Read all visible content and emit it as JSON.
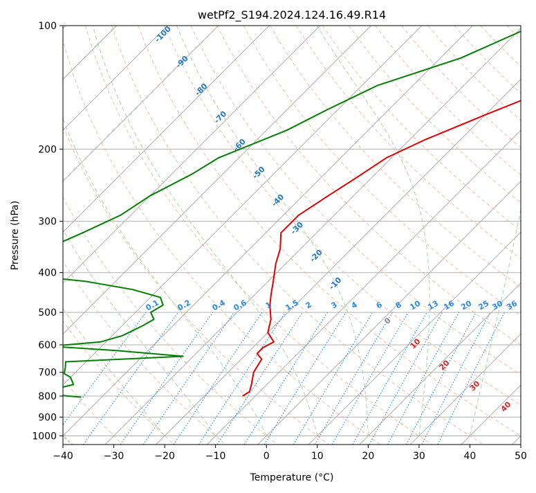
{
  "chart_data": {
    "type": "skew-t",
    "title": "wetPf2_S194.2024.124.16.49.R14",
    "xlabel": "Temperature (°C)",
    "ylabel": "Pressure (hPa)",
    "xlim": [
      -40,
      50
    ],
    "ylim": [
      1050,
      100
    ],
    "y_scale": "log",
    "grid": true,
    "x_ticks": [
      -40,
      -30,
      -20,
      -10,
      0,
      10,
      20,
      30,
      40,
      50
    ],
    "x_tick_labels": [
      "−40",
      "−30",
      "−20",
      "−10",
      "0",
      "10",
      "20",
      "30",
      "40",
      "50"
    ],
    "y_ticks": [
      100,
      200,
      300,
      400,
      500,
      600,
      700,
      800,
      900,
      1000
    ],
    "y_tick_labels": [
      "100",
      "200",
      "300",
      "400",
      "500",
      "600",
      "700",
      "800",
      "900",
      "1000"
    ],
    "colors": {
      "temperature": "#e00000",
      "dewpoint": "#008000",
      "isotherm": "#aaaaaa",
      "dry_adiabat": "#f4a582",
      "moist_adiabat": "#9fd49f",
      "mixing_ratio": "#1e88e5",
      "label_blue": "#1f78c8",
      "label_red": "#d62728"
    },
    "series": [
      {
        "name": "",
        "color": "#e00000",
        "points": [
          [
            100,
            -17
          ],
          [
            115,
            -13
          ],
          [
            130,
            -13
          ],
          [
            150,
            -15
          ],
          [
            165,
            -20
          ],
          [
            190,
            -27
          ],
          [
            210,
            -31
          ],
          [
            235,
            -33
          ],
          [
            260,
            -35
          ],
          [
            290,
            -37
          ],
          [
            320,
            -37
          ],
          [
            350,
            -34
          ],
          [
            380,
            -32
          ],
          [
            420,
            -29
          ],
          [
            450,
            -27
          ],
          [
            480,
            -25
          ],
          [
            520,
            -22
          ],
          [
            560,
            -20
          ],
          [
            590,
            -17
          ],
          [
            610,
            -18
          ],
          [
            630,
            -18
          ],
          [
            650,
            -16
          ],
          [
            700,
            -15
          ],
          [
            750,
            -13
          ],
          [
            780,
            -12
          ],
          [
            800,
            -12.5
          ]
        ]
      },
      {
        "name": "",
        "color": "#008000",
        "points": [
          [
            100,
            -28
          ],
          [
            120,
            -36
          ],
          [
            140,
            -47
          ],
          [
            160,
            -52
          ],
          [
            180,
            -56
          ],
          [
            210,
            -64
          ],
          [
            230,
            -66
          ],
          [
            260,
            -70
          ],
          [
            290,
            -72
          ],
          [
            320,
            -76
          ],
          [
            350,
            -80
          ],
          [
            380,
            -88
          ],
          [
            400,
            -85
          ],
          [
            420,
            -66
          ],
          [
            440,
            -55
          ],
          [
            460,
            -48
          ],
          [
            480,
            -46
          ],
          [
            500,
            -47
          ],
          [
            520,
            -45
          ],
          [
            540,
            -46
          ],
          [
            570,
            -48
          ],
          [
            590,
            -51
          ],
          [
            605,
            -60
          ],
          [
            620,
            -46
          ],
          [
            640,
            -32
          ],
          [
            660,
            -54
          ],
          [
            680,
            -53
          ],
          [
            705,
            -52
          ],
          [
            720,
            -50
          ],
          [
            750,
            -48
          ],
          [
            770,
            -51
          ],
          [
            790,
            -52
          ],
          [
            805,
            -44
          ]
        ]
      }
    ],
    "isotherm_labels": [
      "0",
      "10",
      "20",
      "30",
      "40"
    ],
    "dry_adiabat_labels": [
      "-100",
      "-90",
      "-80",
      "-70",
      "-60",
      "-50",
      "-40",
      "-30",
      "-20",
      "-10"
    ],
    "mixing_ratio_labels": [
      "0.1",
      "0.2",
      "0.4",
      "0.6",
      "1",
      "1.5",
      "2",
      "3",
      "4",
      "6",
      "8",
      "10",
      "13",
      "16",
      "20",
      "25",
      "30",
      "36"
    ]
  }
}
